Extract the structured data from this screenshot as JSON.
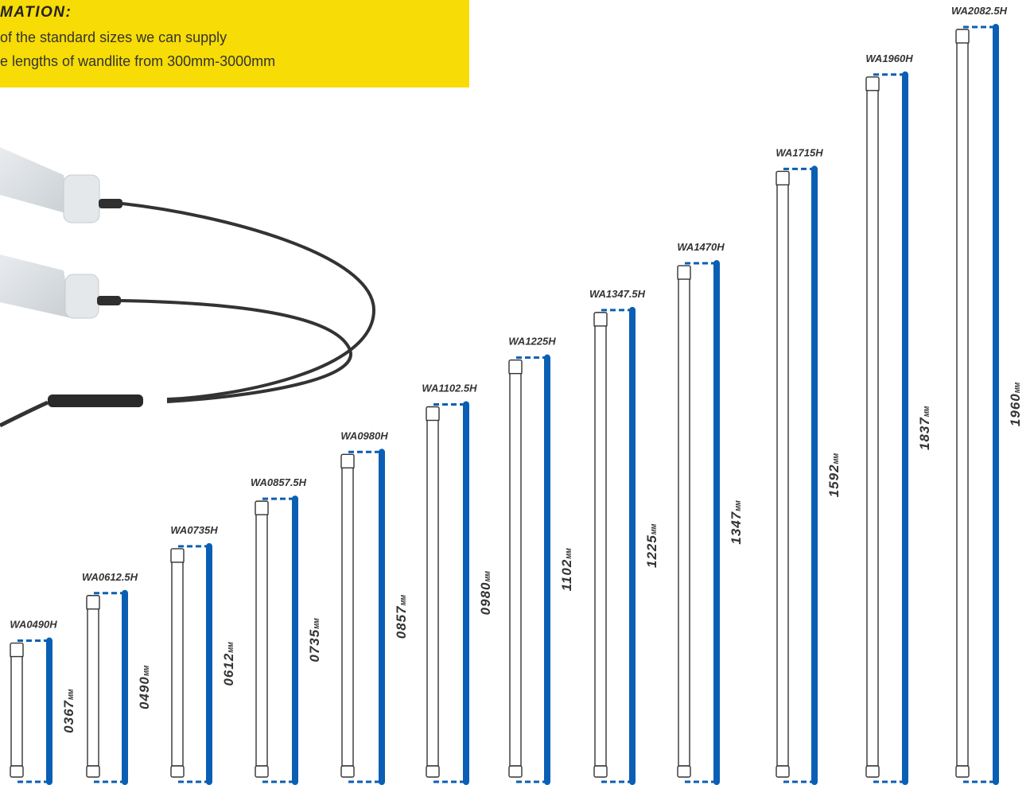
{
  "info": {
    "title": "MATION:",
    "line1": "of the standard sizes we can supply",
    "line2": "e lengths of wandlite from 300mm-3000mm",
    "color": "#f7dc05"
  },
  "accent_color": "#0a5fb4",
  "unit": "MM",
  "products": [
    {
      "code": "WA0490H",
      "length": "0367",
      "fraction": 0.187
    },
    {
      "code": "WA0612.5H",
      "length": "0490",
      "fraction": 0.25
    },
    {
      "code": "WA0735H",
      "length": "0612",
      "fraction": 0.312
    },
    {
      "code": "WA0857.5H",
      "length": "0735",
      "fraction": 0.375
    },
    {
      "code": "WA0980H",
      "length": "0857",
      "fraction": 0.437
    },
    {
      "code": "WA1102.5H",
      "length": "0980",
      "fraction": 0.5
    },
    {
      "code": "WA1225H",
      "length": "1102",
      "fraction": 0.562
    },
    {
      "code": "WA1347.5H",
      "length": "1225",
      "fraction": 0.625
    },
    {
      "code": "WA1470H",
      "length": "1347",
      "fraction": 0.687
    },
    {
      "code": "WA1715H",
      "length": "1592",
      "fraction": 0.812
    },
    {
      "code": "WA1960H",
      "length": "1837",
      "fraction": 0.937
    },
    {
      "code": "WA2082.5H",
      "length": "1960",
      "fraction": 1.0
    }
  ]
}
